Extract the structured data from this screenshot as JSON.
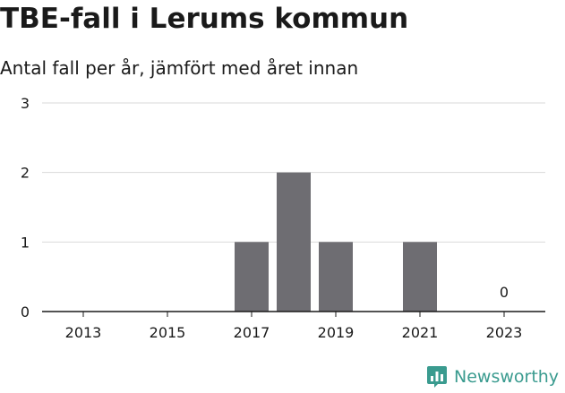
{
  "title": "TBE-fall i Lerums kommun",
  "subtitle": "Antal fall per år, jämfört med året innan",
  "brand": {
    "name": "Newsworthy",
    "color": "#3a9b8f",
    "icon": "newsworthy-logo-icon"
  },
  "colors": {
    "bar": "#6e6d72",
    "grid": "#d9d9d9",
    "axis": "#1a1a1a"
  },
  "chart_data": {
    "type": "bar",
    "title": "TBE-fall i Lerums kommun",
    "subtitle": "Antal fall per år, jämfört med året innan",
    "categories": [
      2013,
      2014,
      2015,
      2016,
      2017,
      2018,
      2019,
      2020,
      2021,
      2022,
      2023
    ],
    "values": [
      0,
      0,
      0,
      0,
      1,
      2,
      1,
      0,
      1,
      0,
      0
    ],
    "x_tick_labels": [
      "2013",
      "2015",
      "2017",
      "2019",
      "2021",
      "2023"
    ],
    "y_ticks": [
      0,
      1,
      2,
      3
    ],
    "ylim": [
      0,
      3
    ],
    "xlabel": "",
    "ylabel": "",
    "grid": true,
    "legend": "none",
    "data_labels": [
      {
        "category": 2023,
        "text": "0"
      }
    ]
  }
}
